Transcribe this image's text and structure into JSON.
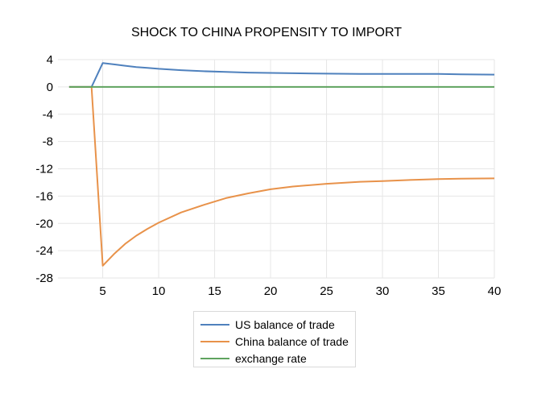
{
  "chart_data": {
    "type": "line",
    "title": "SHOCK TO CHINA PROPENSITY TO IMPORT",
    "xlabel": "",
    "ylabel": "",
    "xlim": [
      1,
      40
    ],
    "ylim": [
      -28,
      4
    ],
    "x_ticks": [
      5,
      10,
      15,
      20,
      25,
      30,
      35,
      40
    ],
    "y_ticks": [
      4,
      0,
      -4,
      -8,
      -12,
      -16,
      -20,
      -24,
      -28
    ],
    "grid": true,
    "legend_position": "bottom",
    "series": [
      {
        "name": "US balance of trade",
        "color": "#4f81bd",
        "x": [
          2,
          3,
          4,
          5,
          6,
          7,
          8,
          9,
          10,
          12,
          14,
          16,
          18,
          20,
          22,
          25,
          28,
          30,
          33,
          35,
          37,
          40
        ],
        "values": [
          0,
          0,
          0,
          3.5,
          3.3,
          3.1,
          2.9,
          2.8,
          2.65,
          2.45,
          2.3,
          2.2,
          2.1,
          2.05,
          2.0,
          1.95,
          1.9,
          1.9,
          1.9,
          1.9,
          1.85,
          1.8
        ]
      },
      {
        "name": "China balance of trade",
        "color": "#e8924a",
        "x": [
          2,
          3,
          4,
          5,
          6,
          7,
          8,
          9,
          10,
          12,
          14,
          16,
          18,
          20,
          22,
          25,
          28,
          30,
          33,
          35,
          37,
          40
        ],
        "values": [
          0,
          0,
          0,
          -26.2,
          -24.5,
          -23.0,
          -21.8,
          -20.8,
          -19.9,
          -18.4,
          -17.3,
          -16.3,
          -15.6,
          -15.0,
          -14.6,
          -14.2,
          -13.9,
          -13.8,
          -13.6,
          -13.5,
          -13.45,
          -13.4
        ]
      },
      {
        "name": "exchange rate",
        "color": "#5fa35f",
        "x": [
          2,
          40
        ],
        "values": [
          0,
          0
        ]
      }
    ]
  }
}
